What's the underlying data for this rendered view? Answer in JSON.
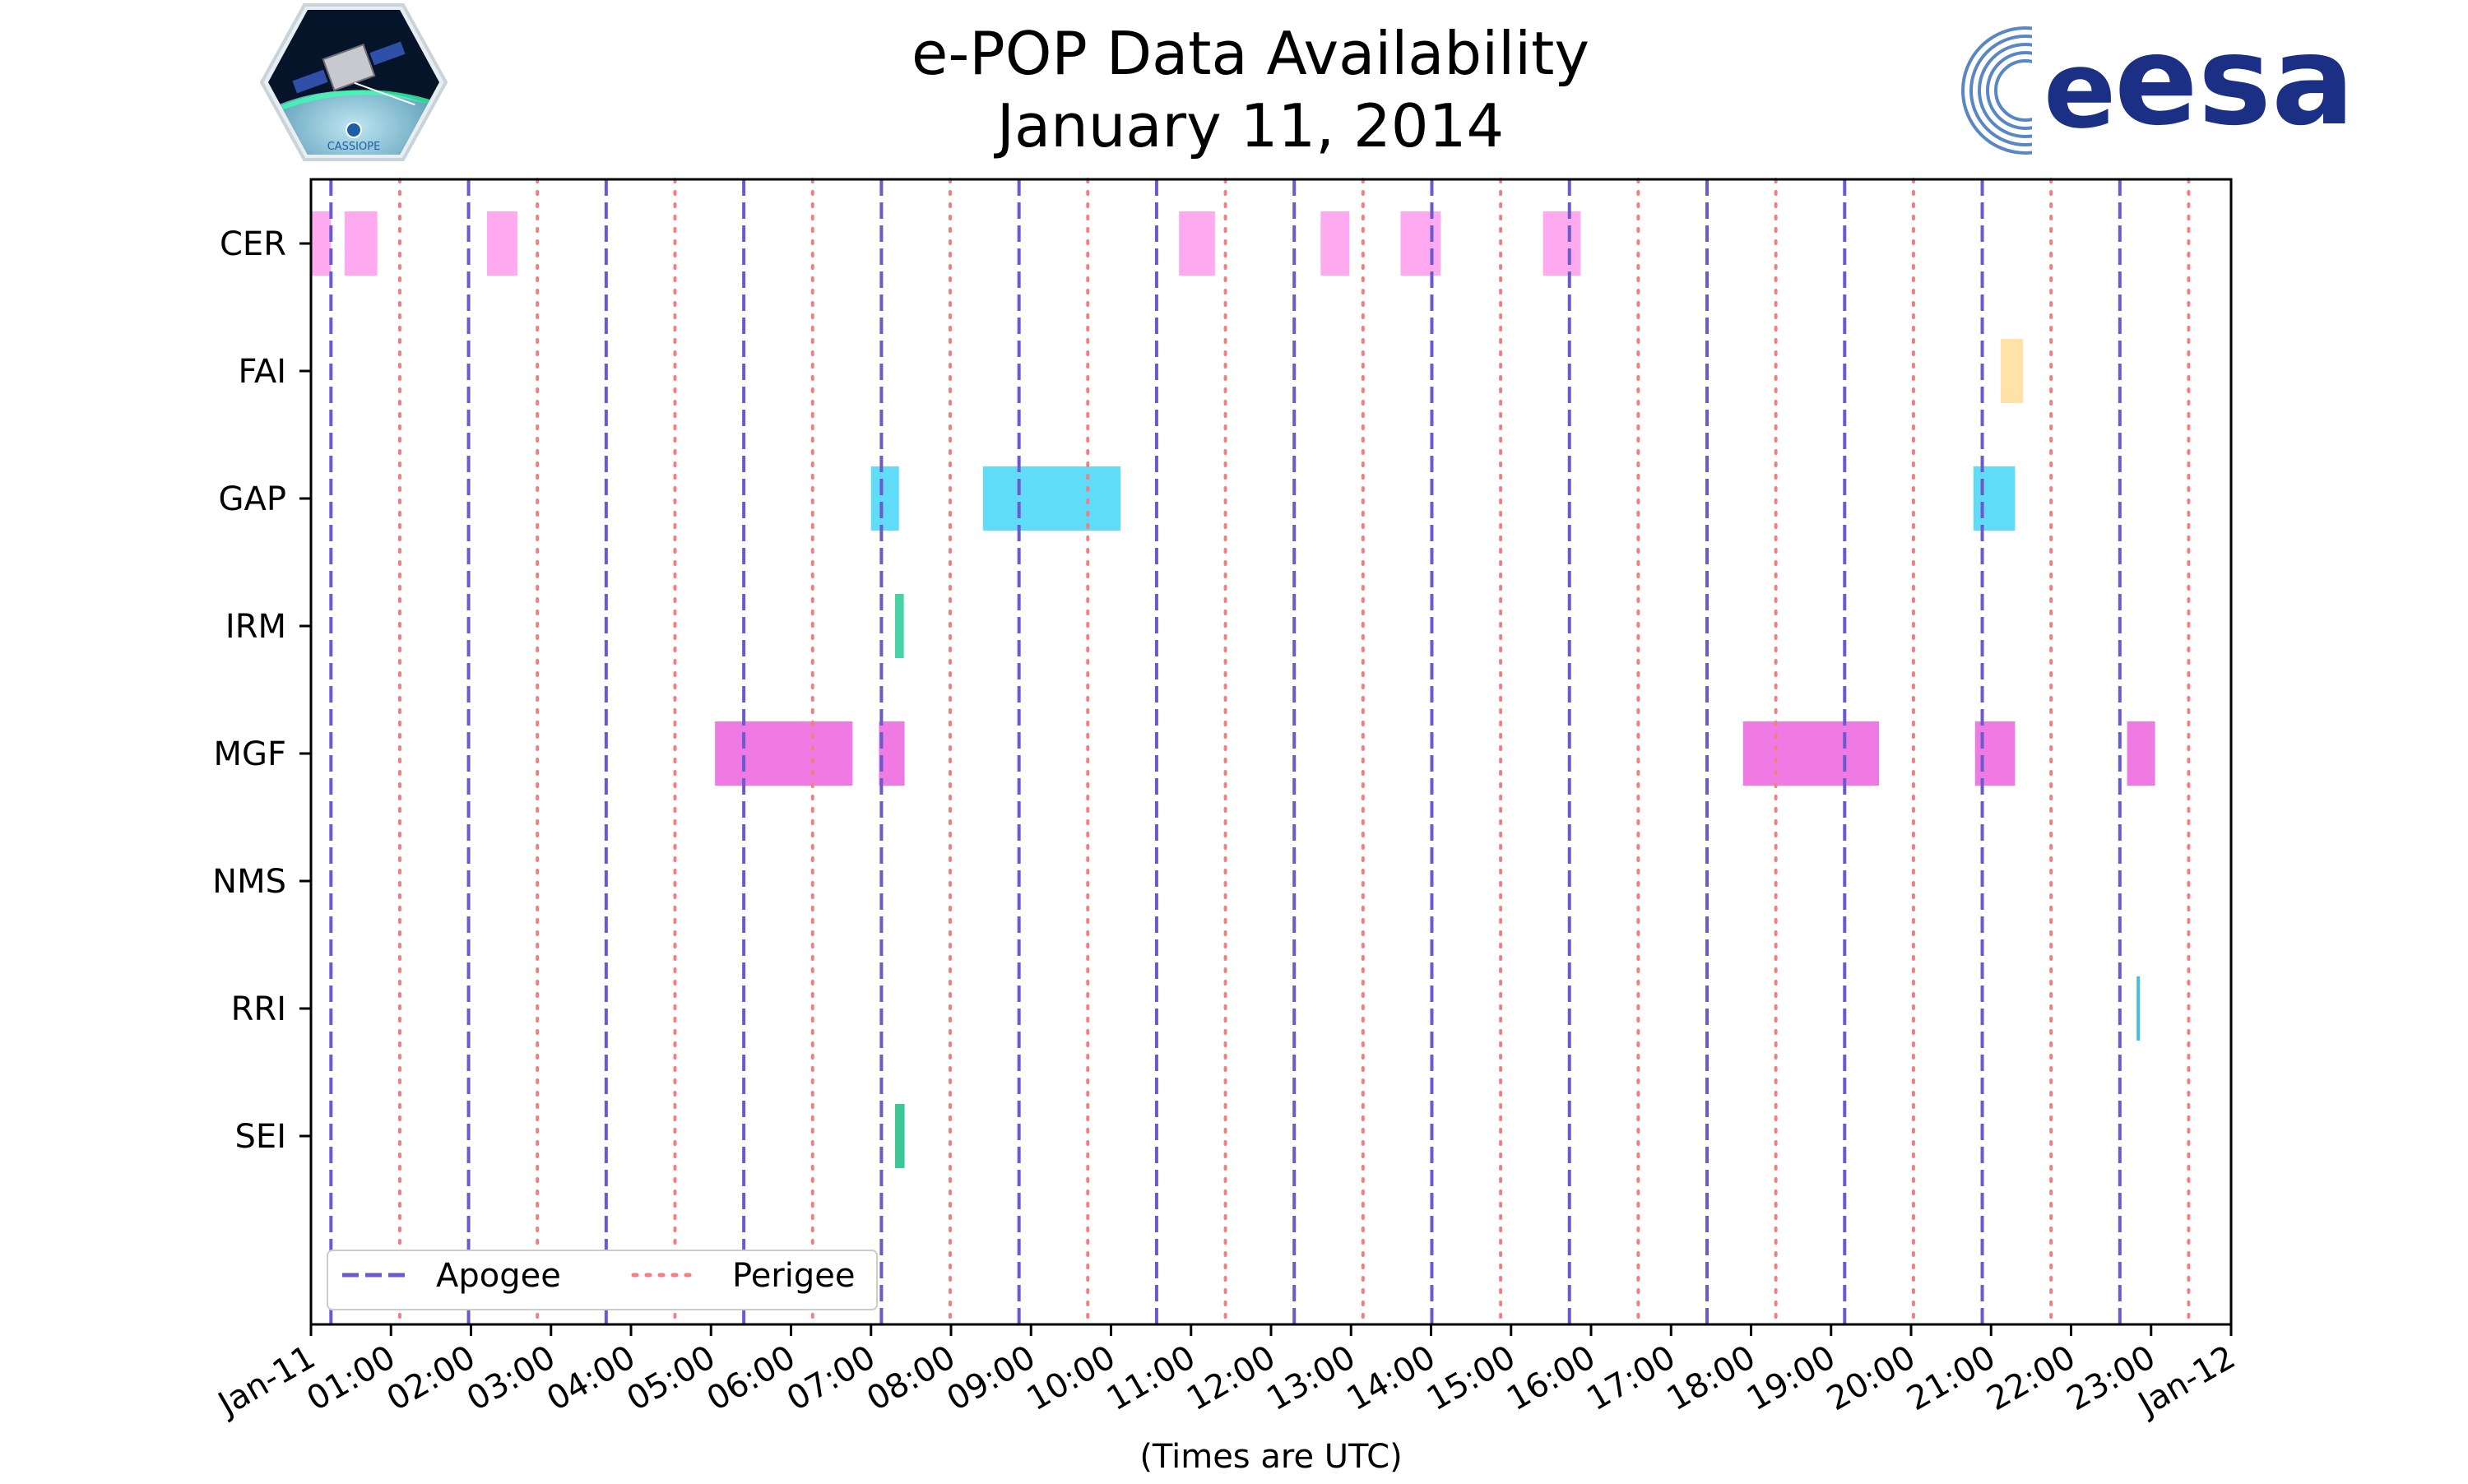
{
  "chart_data": {
    "type": "timeline",
    "title": "e-POP Data Availability",
    "subtitle": "January 11, 2014",
    "xlabel": "(Times are UTC)",
    "xlim_hours": [
      0,
      24
    ],
    "x_tick_labels": [
      "Jan-11",
      "01:00",
      "02:00",
      "03:00",
      "04:00",
      "05:00",
      "06:00",
      "07:00",
      "08:00",
      "09:00",
      "10:00",
      "11:00",
      "12:00",
      "13:00",
      "14:00",
      "15:00",
      "16:00",
      "17:00",
      "18:00",
      "19:00",
      "20:00",
      "21:00",
      "22:00",
      "23:00",
      "Jan-12"
    ],
    "instruments": [
      "CER",
      "FAI",
      "GAP",
      "IRM",
      "MGF",
      "NMS",
      "RRI",
      "SEI"
    ],
    "colors": {
      "CER": "#ffaaf0",
      "FAI": "#ffe3a6",
      "GAP": "#60dcf8",
      "IRM": "#45d3a5",
      "MGF": "#f07ae4",
      "NMS": "#aaaaaa",
      "RRI": "#3fbfe4",
      "SEI": "#3ec796",
      "apogee": "#6a5acd",
      "perigee": "#f08080"
    },
    "intervals": {
      "CER": [
        [
          0.0,
          0.25
        ],
        [
          0.42,
          0.83
        ],
        [
          2.2,
          2.58
        ],
        [
          10.85,
          11.3
        ],
        [
          12.62,
          12.98
        ],
        [
          13.62,
          14.12
        ],
        [
          15.4,
          15.87
        ]
      ],
      "FAI": [
        [
          21.12,
          21.4
        ]
      ],
      "GAP": [
        [
          7.0,
          7.35
        ],
        [
          8.4,
          10.12
        ],
        [
          20.78,
          21.3
        ]
      ],
      "IRM": [
        [
          7.3,
          7.41
        ]
      ],
      "MGF": [
        [
          5.05,
          6.77
        ],
        [
          7.1,
          7.42
        ],
        [
          17.9,
          19.6
        ],
        [
          20.8,
          21.3
        ],
        [
          22.7,
          23.05
        ]
      ],
      "NMS": [],
      "RRI": [
        [
          22.82,
          22.86
        ]
      ],
      "SEI": [
        [
          7.3,
          7.42
        ]
      ]
    },
    "apogee_hours": [
      0.25,
      1.97,
      3.69,
      5.41,
      7.13,
      8.85,
      10.57,
      12.29,
      14.01,
      15.73,
      17.45,
      19.17,
      20.89,
      22.61
    ],
    "perigee_hours": [
      1.11,
      2.83,
      4.55,
      6.27,
      7.99,
      9.71,
      11.43,
      13.15,
      14.87,
      16.59,
      18.31,
      20.03,
      21.75,
      23.47
    ],
    "legend": {
      "position": "lower-left",
      "entries": [
        "Apogee",
        "Perigee"
      ]
    }
  },
  "logos": {
    "left_icon": "cassiope-satellite-logo",
    "left_caption": "CASSIOPE",
    "right_icon": "esa-logo",
    "right_text": "esa"
  }
}
